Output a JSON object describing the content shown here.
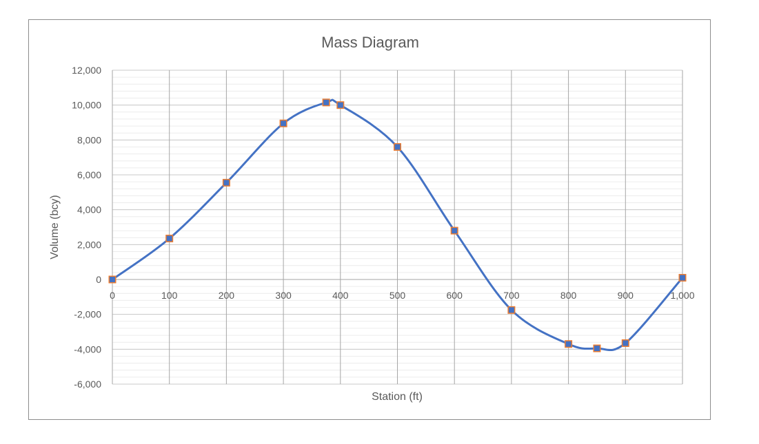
{
  "chart_data": {
    "type": "scatter",
    "title": "Mass Diagram",
    "xlabel": "Station (ft)",
    "ylabel": "Volume (bcy)",
    "xlim": [
      0,
      1000
    ],
    "ylim": [
      -6000,
      12000
    ],
    "x_ticks": [
      0,
      100,
      200,
      300,
      400,
      500,
      600,
      700,
      800,
      900,
      1000
    ],
    "x_tick_labels": [
      "0",
      "100",
      "200",
      "300",
      "400",
      "500",
      "600",
      "700",
      "800",
      "900",
      "1,000"
    ],
    "y_ticks": [
      -6000,
      -4000,
      -2000,
      0,
      2000,
      4000,
      6000,
      8000,
      10000,
      12000
    ],
    "y_tick_labels": [
      "-6,000",
      "-4,000",
      "-2,000",
      "0",
      "2,000",
      "4,000",
      "6,000",
      "8,000",
      "10,000",
      "12,000"
    ],
    "grid": true,
    "smooth_line": true,
    "series": [
      {
        "x": [
          0,
          100,
          200,
          300,
          375,
          400,
          500,
          600,
          700,
          800,
          850,
          900,
          1000
        ],
        "y": [
          0,
          2350,
          5550,
          8950,
          10150,
          10000,
          7600,
          2800,
          -1750,
          -3700,
          -3950,
          -3650,
          100
        ],
        "line_color": "#4472C4",
        "marker_color": "#4472C4",
        "marker_edge_color": "#ED7D31"
      }
    ]
  }
}
